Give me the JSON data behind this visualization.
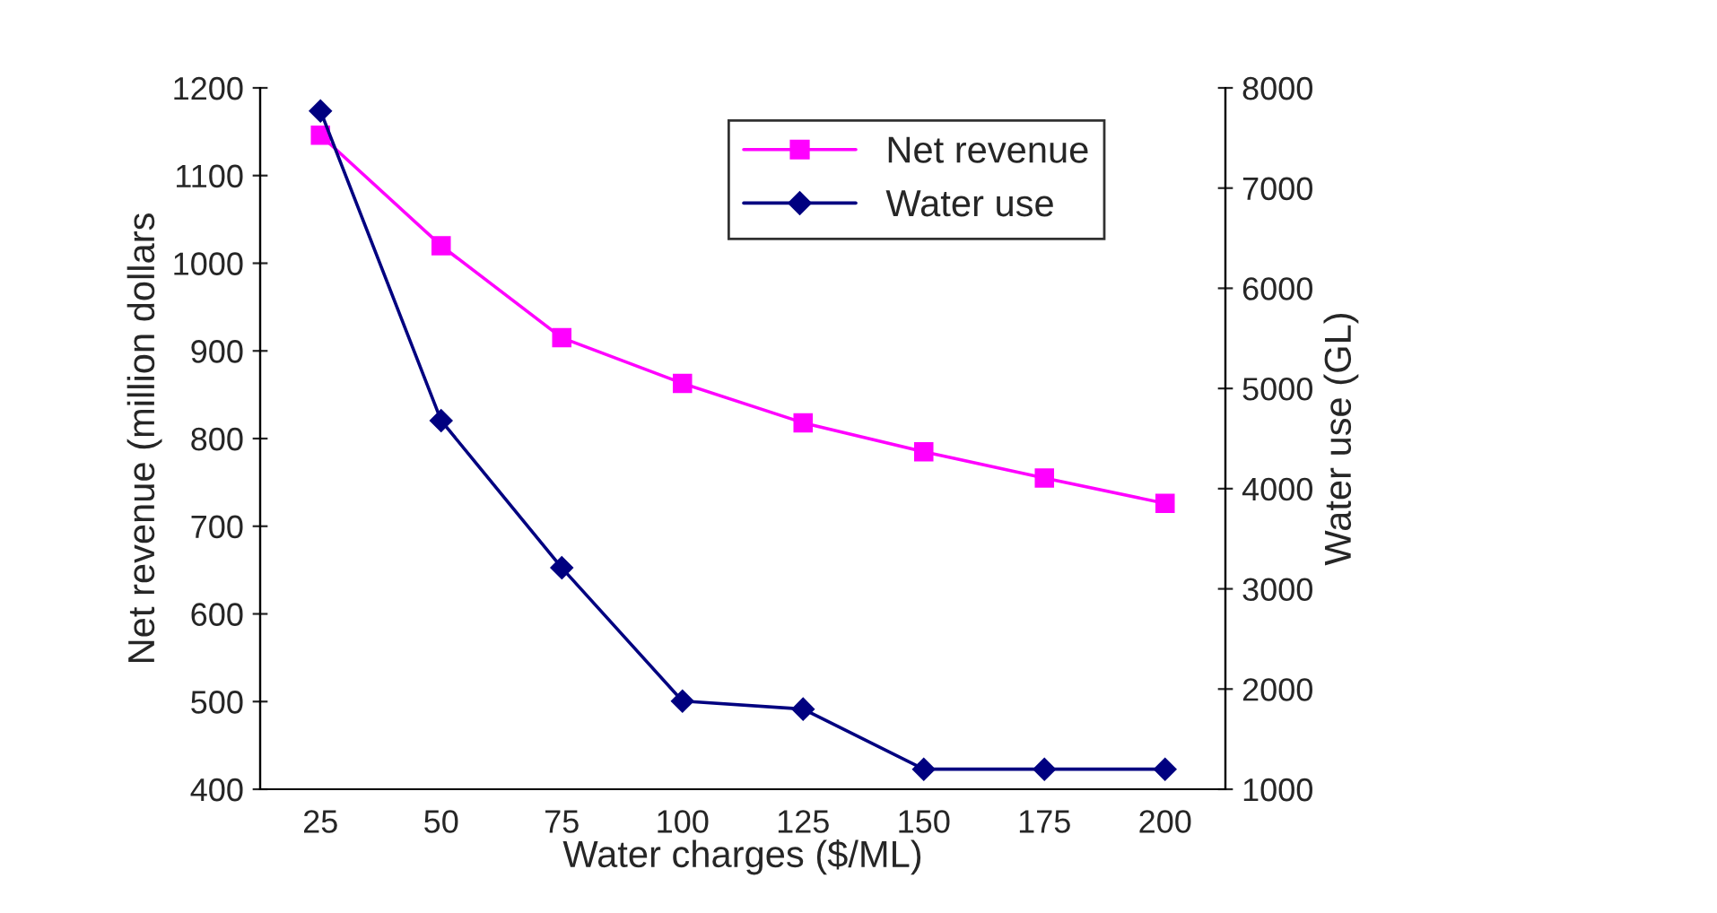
{
  "chart_data": {
    "type": "line",
    "xlabel": "Water charges ($/ML)",
    "ylabel": "Net revenue (million dollars",
    "y2label": "Water use (GL)",
    "categories": [
      "25",
      "50",
      "75",
      "100",
      "125",
      "150",
      "175",
      "200"
    ],
    "series": [
      {
        "name": "Net revenue",
        "color": "#ff00ff",
        "marker": "square",
        "values": [
          1146,
          1020,
          915,
          863,
          818,
          785,
          755,
          726
        ]
      },
      {
        "name": "Water use",
        "color": "#000080",
        "marker": "diamond",
        "axis": "y2",
        "values": [
          7770,
          4680,
          3210,
          1880,
          1800,
          1200,
          1200,
          1200
        ]
      }
    ],
    "ylim": [
      400,
      1200
    ],
    "yticks": [
      400,
      500,
      600,
      700,
      800,
      900,
      1000,
      1100,
      1200
    ],
    "y2lim": [
      1000,
      8000
    ],
    "y2ticks": [
      1000,
      2000,
      3000,
      4000,
      5000,
      6000,
      7000,
      8000
    ],
    "grid": false,
    "legend": "top",
    "line_style": "solid"
  }
}
